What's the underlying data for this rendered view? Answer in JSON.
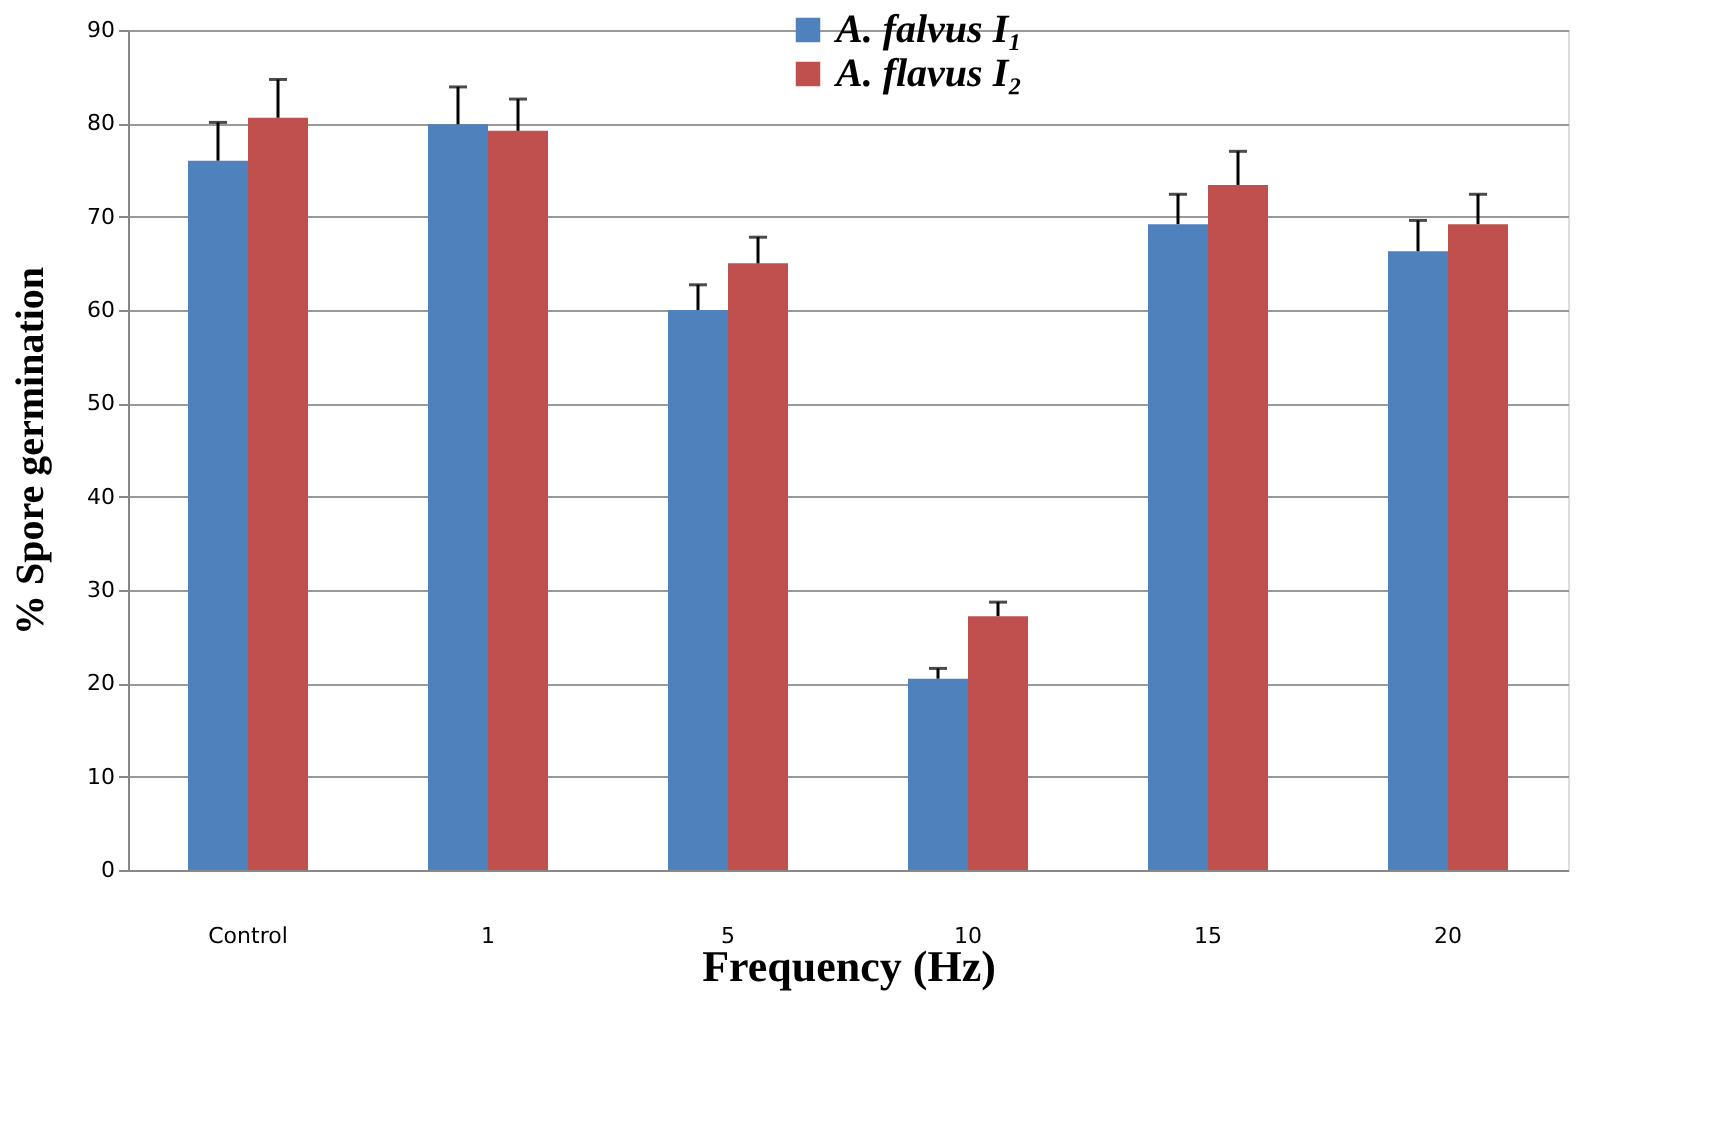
{
  "chart_data": {
    "type": "bar",
    "xlabel": "Frequency (Hz)",
    "ylabel": "% Spore germination",
    "categories": [
      "Control",
      "1",
      "5",
      "10",
      "15",
      "20"
    ],
    "series": [
      {
        "name": "A. falvus I₁",
        "color": "#4f81bd",
        "values": [
          76,
          79.9,
          60,
          20.5,
          69.2,
          66.3
        ],
        "errors": [
          [
            76,
            80.1
          ],
          [
            79.9,
            83.9
          ],
          [
            60,
            62.7
          ],
          [
            20.5,
            21.6
          ],
          [
            69.2,
            72.4
          ],
          [
            66.3,
            69.6
          ]
        ]
      },
      {
        "name": "A. flavus I₂",
        "color": "#c0504d",
        "values": [
          80.6,
          79.2,
          65,
          27.2,
          73.4,
          69.2
        ],
        "errors": [
          [
            80.6,
            84.7
          ],
          [
            79.2,
            82.6
          ],
          [
            65,
            67.8
          ],
          [
            27.2,
            28.7
          ],
          [
            73.4,
            77
          ],
          [
            69.2,
            72.4
          ]
        ]
      }
    ],
    "ylim": [
      0,
      90
    ],
    "yticks": [
      0,
      10,
      20,
      30,
      40,
      50,
      60,
      70,
      80,
      90
    ],
    "grid": "y",
    "legend": "top"
  }
}
